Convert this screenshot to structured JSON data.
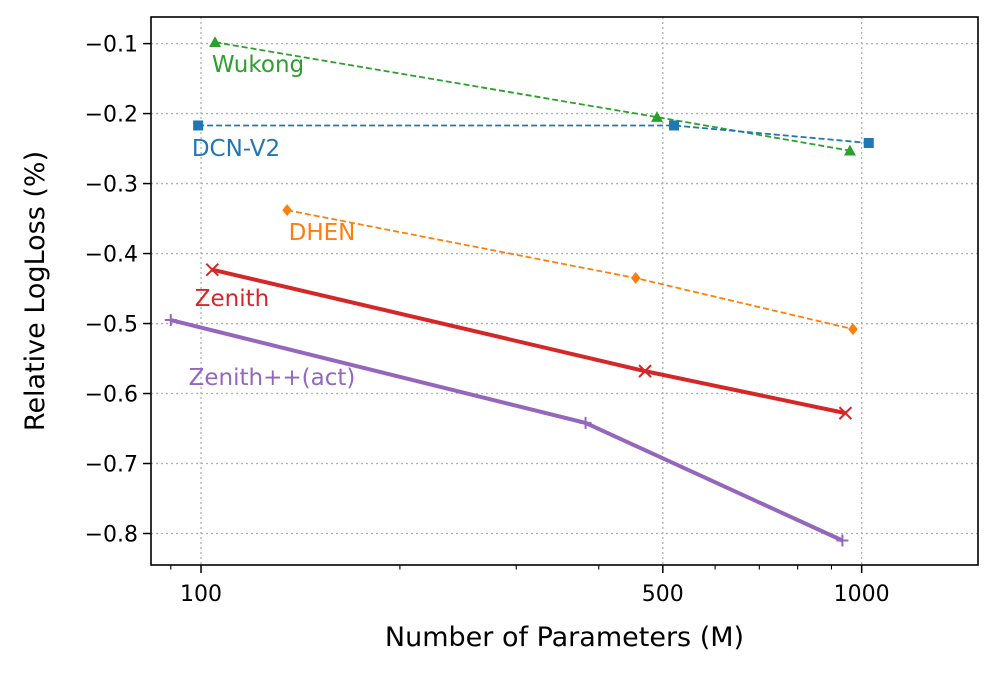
{
  "chart_data": {
    "type": "line",
    "title": "",
    "xlabel": "Number of Parameters (M)",
    "ylabel": "Relative LogLoss (%)",
    "x_scale": "log",
    "xlim": [
      84,
      1500
    ],
    "ylim": [
      -0.845,
      -0.062
    ],
    "x_ticks": [
      {
        "value": 100,
        "label": "100"
      },
      {
        "value": 500,
        "label": "500"
      },
      {
        "value": 1000,
        "label": "1000"
      }
    ],
    "y_ticks": [
      {
        "value": -0.1,
        "label": "−0.1"
      },
      {
        "value": -0.2,
        "label": "−0.2"
      },
      {
        "value": -0.3,
        "label": "−0.3"
      },
      {
        "value": -0.4,
        "label": "−0.4"
      },
      {
        "value": -0.5,
        "label": "−0.5"
      },
      {
        "value": -0.6,
        "label": "−0.6"
      },
      {
        "value": -0.7,
        "label": "−0.7"
      },
      {
        "value": -0.8,
        "label": "−0.8"
      }
    ],
    "grid": true,
    "series": [
      {
        "name": "Wukong",
        "color": "#2ca02c",
        "marker": "triangle",
        "line": "dashed",
        "x": [
          105,
          490,
          960
        ],
        "y": [
          -0.098,
          -0.205,
          -0.253
        ]
      },
      {
        "name": "DCN-V2",
        "color": "#1f77b4",
        "marker": "square",
        "line": "dashed",
        "x": [
          99,
          520,
          1025
        ],
        "y": [
          -0.217,
          -0.217,
          -0.242
        ]
      },
      {
        "name": "DHEN",
        "color": "#ff7f0e",
        "marker": "diamond",
        "line": "dashed",
        "x": [
          135,
          455,
          970
        ],
        "y": [
          -0.338,
          -0.435,
          -0.508
        ]
      },
      {
        "name": "Zenith",
        "color": "#d62728",
        "marker": "x",
        "line": "solid",
        "x": [
          104,
          470,
          945
        ],
        "y": [
          -0.423,
          -0.568,
          -0.628
        ]
      },
      {
        "name": "Zenith++(act)",
        "color": "#9467bd",
        "marker": "plus",
        "line": "solid",
        "x": [
          90,
          382,
          935
        ],
        "y": [
          -0.495,
          -0.642,
          -0.81
        ]
      }
    ]
  }
}
